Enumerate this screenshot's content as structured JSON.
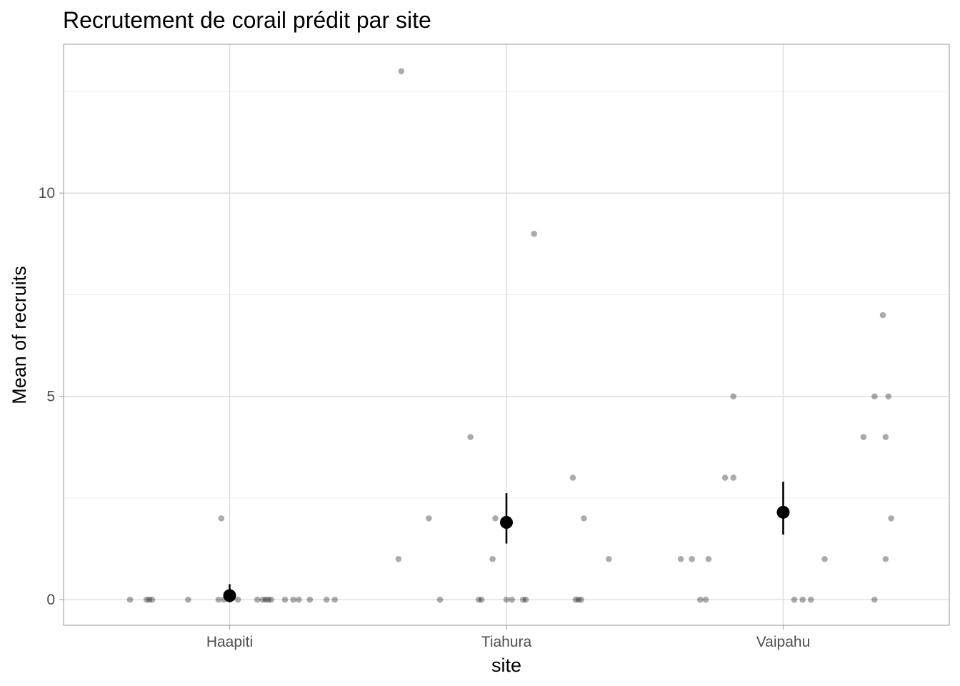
{
  "chart_data": {
    "type": "scatter",
    "title": "Recrutement de corail prédit par site",
    "xlabel": "site",
    "ylabel": "Mean of recruits",
    "categories": [
      "Haapiti",
      "Tiahura",
      "Vaipahu"
    ],
    "ylim": [
      -0.63,
      13.66
    ],
    "yticks": [
      0,
      5,
      10
    ],
    "ytick_labels": [
      "0",
      "5",
      "10"
    ],
    "grid": true,
    "colors": {
      "raw_points": "#000000",
      "estimate": "#000000"
    },
    "raw_points": [
      {
        "x": 0.64,
        "y": 0
      },
      {
        "x": 0.7,
        "y": 0
      },
      {
        "x": 0.71,
        "y": 0
      },
      {
        "x": 0.72,
        "y": 0
      },
      {
        "x": 0.85,
        "y": 0
      },
      {
        "x": 0.96,
        "y": 0
      },
      {
        "x": 0.97,
        "y": 2
      },
      {
        "x": 0.98,
        "y": 0
      },
      {
        "x": 1.0,
        "y": 0
      },
      {
        "x": 1.03,
        "y": 0
      },
      {
        "x": 1.1,
        "y": 0
      },
      {
        "x": 1.12,
        "y": 0
      },
      {
        "x": 1.13,
        "y": 0
      },
      {
        "x": 1.14,
        "y": 0
      },
      {
        "x": 1.15,
        "y": 0
      },
      {
        "x": 1.2,
        "y": 0
      },
      {
        "x": 1.23,
        "y": 0
      },
      {
        "x": 1.25,
        "y": 0
      },
      {
        "x": 1.29,
        "y": 0
      },
      {
        "x": 1.35,
        "y": 0
      },
      {
        "x": 1.38,
        "y": 0
      },
      {
        "x": 1.61,
        "y": 1
      },
      {
        "x": 1.62,
        "y": 13
      },
      {
        "x": 1.72,
        "y": 2
      },
      {
        "x": 1.76,
        "y": 0
      },
      {
        "x": 1.87,
        "y": 4
      },
      {
        "x": 1.9,
        "y": 0
      },
      {
        "x": 1.91,
        "y": 0
      },
      {
        "x": 1.95,
        "y": 1
      },
      {
        "x": 1.96,
        "y": 2
      },
      {
        "x": 2.0,
        "y": 0
      },
      {
        "x": 2.02,
        "y": 0
      },
      {
        "x": 2.06,
        "y": 0
      },
      {
        "x": 2.07,
        "y": 0
      },
      {
        "x": 2.1,
        "y": 9
      },
      {
        "x": 2.24,
        "y": 3
      },
      {
        "x": 2.25,
        "y": 0
      },
      {
        "x": 2.26,
        "y": 0
      },
      {
        "x": 2.27,
        "y": 0
      },
      {
        "x": 2.28,
        "y": 2
      },
      {
        "x": 2.37,
        "y": 1
      },
      {
        "x": 2.63,
        "y": 1
      },
      {
        "x": 2.67,
        "y": 1
      },
      {
        "x": 2.7,
        "y": 0
      },
      {
        "x": 2.72,
        "y": 0
      },
      {
        "x": 2.73,
        "y": 1
      },
      {
        "x": 2.79,
        "y": 3
      },
      {
        "x": 2.82,
        "y": 3
      },
      {
        "x": 2.82,
        "y": 5
      },
      {
        "x": 3.04,
        "y": 0
      },
      {
        "x": 3.07,
        "y": 0
      },
      {
        "x": 3.1,
        "y": 0
      },
      {
        "x": 3.15,
        "y": 1
      },
      {
        "x": 3.29,
        "y": 4
      },
      {
        "x": 3.33,
        "y": 0
      },
      {
        "x": 3.33,
        "y": 5
      },
      {
        "x": 3.36,
        "y": 7
      },
      {
        "x": 3.37,
        "y": 4
      },
      {
        "x": 3.37,
        "y": 1
      },
      {
        "x": 3.38,
        "y": 5
      },
      {
        "x": 3.39,
        "y": 2
      }
    ],
    "series": [
      {
        "x": [
          1,
          2,
          3
        ],
        "values": [
          0.1,
          1.9,
          2.15
        ],
        "lower": [
          0.0,
          1.38,
          1.6
        ],
        "upper": [
          0.38,
          2.62,
          2.9
        ]
      }
    ]
  }
}
